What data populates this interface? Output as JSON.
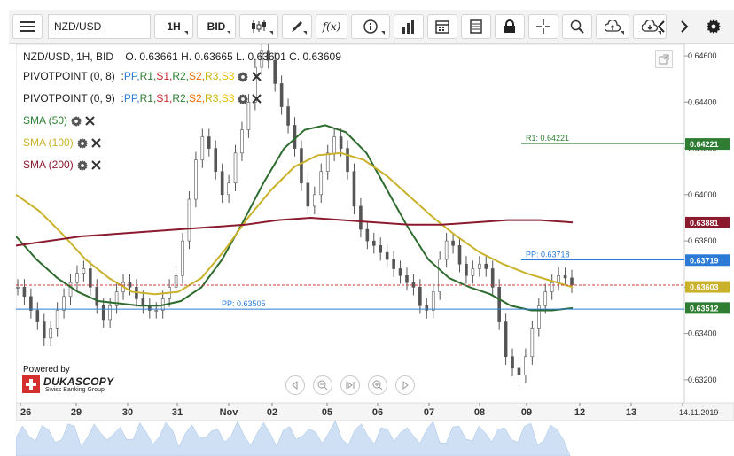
{
  "toolbar": {
    "symbol": "NZD/USD",
    "timeframe": "1H",
    "offer_side": "BID",
    "fx_label": "f(x)"
  },
  "header": {
    "instrument": "NZD/USD, 1H, BID",
    "ohlc": "O. 0.63661 H. 0.63665 L. 0.63601 C. 0.63609"
  },
  "legends": [
    {
      "name": "PIVOTPOINT (0, 8)",
      "color": "#222222",
      "items": [
        {
          "label": "PP",
          "color": "#2b7bd6"
        },
        {
          "label": "R1",
          "color": "#2e7d32"
        },
        {
          "label": "S1",
          "color": "#c62828"
        },
        {
          "label": "R2",
          "color": "#2e7d32"
        },
        {
          "label": "S2",
          "color": "#ef6c00"
        },
        {
          "label": "R3",
          "color": "#c8b400"
        },
        {
          "label": "S3",
          "color": "#e6c200"
        }
      ]
    },
    {
      "name": "PIVOTPOINT (0, 9)",
      "color": "#222222",
      "items": [
        {
          "label": "PP",
          "color": "#2b7bd6"
        },
        {
          "label": "R1",
          "color": "#2e7d32"
        },
        {
          "label": "S1",
          "color": "#c62828"
        },
        {
          "label": "R2",
          "color": "#2e7d32"
        },
        {
          "label": "S2",
          "color": "#ef6c00"
        },
        {
          "label": "R3",
          "color": "#c8b400"
        },
        {
          "label": "S3",
          "color": "#e6c200"
        }
      ]
    },
    {
      "name": "SMA (50)",
      "color": "#2e7d32",
      "items": []
    },
    {
      "name": "SMA (100)",
      "color": "#c9b12a",
      "items": []
    },
    {
      "name": "SMA (200)",
      "color": "#8b1a2e",
      "items": []
    }
  ],
  "chart_data": {
    "type": "candlestick",
    "instrument": "NZD/USD",
    "timeframe": "1H",
    "ylim": [
      0.631,
      0.6465
    ],
    "y_ticks": [
      "0.64600",
      "0.64400",
      "0.64200",
      "0.64000",
      "0.63800",
      "0.63600",
      "0.63400",
      "0.63200"
    ],
    "x_ticks": [
      "26",
      "29",
      "30",
      "31",
      "Nov",
      "02",
      "05",
      "06",
      "07",
      "08",
      "09",
      "12",
      "13",
      "14.11.2019"
    ],
    "annotations": [
      {
        "label": "R1: 0.64221",
        "value": 0.64221,
        "color": "#2e7d32"
      },
      {
        "label": "PP: 0.63718",
        "value": 0.63718,
        "color": "#2b7bd6"
      },
      {
        "label": "PP: 0.63505",
        "value": 0.63505,
        "color": "#2b7bd6"
      }
    ],
    "price_badges": [
      {
        "label": "0.64221",
        "value": 0.64221,
        "color": "#2e7d32"
      },
      {
        "label": "0.63881",
        "value": 0.63881,
        "color": "#8b1a2e"
      },
      {
        "label": "0.63719",
        "value": 0.63719,
        "color": "#2b7bd6"
      },
      {
        "label": "0.63603",
        "value": 0.63603,
        "color": "#c9b12a"
      },
      {
        "label": "0.63512",
        "value": 0.63512,
        "color": "#2e7d32"
      }
    ],
    "last_price": 0.63609,
    "price_series": [
      0.636,
      0.6356,
      0.635,
      0.6345,
      0.6338,
      0.6342,
      0.635,
      0.6356,
      0.6362,
      0.6366,
      0.6368,
      0.636,
      0.6352,
      0.6346,
      0.6352,
      0.6358,
      0.6362,
      0.636,
      0.6355,
      0.6352,
      0.635,
      0.635,
      0.6355,
      0.636,
      0.6365,
      0.638,
      0.6398,
      0.6415,
      0.6425,
      0.642,
      0.641,
      0.64,
      0.6405,
      0.6418,
      0.6428,
      0.644,
      0.6455,
      0.6462,
      0.6458,
      0.6448,
      0.6438,
      0.643,
      0.642,
      0.6405,
      0.6395,
      0.64,
      0.641,
      0.6418,
      0.6425,
      0.642,
      0.641,
      0.6395,
      0.6385,
      0.638,
      0.6378,
      0.6375,
      0.6372,
      0.6368,
      0.6365,
      0.6362,
      0.636,
      0.6352,
      0.635,
      0.6358,
      0.6372,
      0.638,
      0.6378,
      0.637,
      0.6365,
      0.6368,
      0.637,
      0.6368,
      0.636,
      0.6345,
      0.633,
      0.6325,
      0.6322,
      0.633,
      0.6342,
      0.6352,
      0.6358,
      0.6362,
      0.6365,
      0.6364,
      0.6361
    ],
    "series": [
      {
        "name": "SMA (50)",
        "color": "#2e6b2e",
        "values": [
          0.6382,
          0.6372,
          0.6364,
          0.6358,
          0.6354,
          0.6353,
          0.6352,
          0.6352,
          0.6354,
          0.636,
          0.6372,
          0.6388,
          0.6405,
          0.642,
          0.6428,
          0.643,
          0.6427,
          0.6418,
          0.6402,
          0.6386,
          0.6372,
          0.6364,
          0.636,
          0.6357,
          0.6352,
          0.635,
          0.635,
          0.6351
        ]
      },
      {
        "name": "SMA (100)",
        "color": "#c9b12a",
        "values": [
          0.64,
          0.6393,
          0.6383,
          0.6372,
          0.6364,
          0.6358,
          0.6357,
          0.6358,
          0.6364,
          0.6376,
          0.639,
          0.6402,
          0.6412,
          0.6417,
          0.6418,
          0.6415,
          0.6408,
          0.6399,
          0.639,
          0.6382,
          0.6375,
          0.637,
          0.6366,
          0.6363,
          0.636
        ]
      },
      {
        "name": "SMA (200)",
        "color": "#8b1a2e",
        "values": [
          0.6378,
          0.638,
          0.6382,
          0.6383,
          0.6384,
          0.6385,
          0.6386,
          0.6387,
          0.6389,
          0.639,
          0.6389,
          0.6388,
          0.6387,
          0.6387,
          0.6388,
          0.6389,
          0.6389,
          0.6388
        ]
      }
    ]
  },
  "footer": {
    "powered_by": "Powered by",
    "brand": "DUKASCOPY",
    "brand_sub": "Swiss Banking Group"
  },
  "colors": {
    "toolbar_bg": "#f3f3f3",
    "candle": "#555555",
    "volume": "#cfe0f5"
  }
}
